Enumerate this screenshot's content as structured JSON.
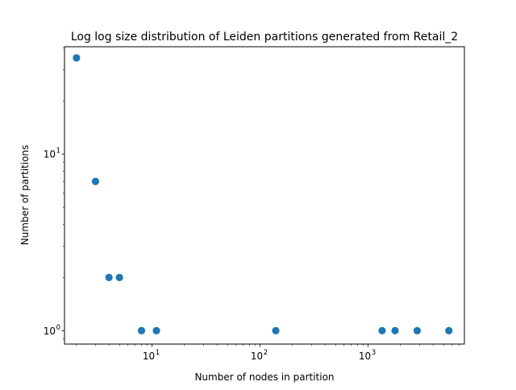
{
  "chart_data": {
    "type": "scatter",
    "title": "Log log size distribution of Leiden partitions generated from Retail_2",
    "xlabel": "Number of nodes in partition",
    "ylabel": "Number of partitions",
    "xscale": "log",
    "yscale": "log",
    "xlim": [
      1.55,
      7800
    ],
    "ylim": [
      0.84,
      40.5
    ],
    "grid": false,
    "x_ticks": [
      {
        "value": 10,
        "base": "10",
        "exp": "1"
      },
      {
        "value": 100,
        "base": "10",
        "exp": "2"
      },
      {
        "value": 1000,
        "base": "10",
        "exp": "3"
      }
    ],
    "y_ticks": [
      {
        "value": 1,
        "base": "10",
        "exp": "0"
      },
      {
        "value": 10,
        "base": "10",
        "exp": "1"
      }
    ],
    "marker_color": "#1f77b4",
    "points": [
      {
        "x": 2,
        "y": 35
      },
      {
        "x": 3,
        "y": 7
      },
      {
        "x": 4,
        "y": 2
      },
      {
        "x": 5,
        "y": 2
      },
      {
        "x": 8,
        "y": 1
      },
      {
        "x": 11,
        "y": 1
      },
      {
        "x": 140,
        "y": 1
      },
      {
        "x": 1350,
        "y": 1
      },
      {
        "x": 1780,
        "y": 1
      },
      {
        "x": 2850,
        "y": 1
      },
      {
        "x": 5600,
        "y": 1
      }
    ]
  }
}
